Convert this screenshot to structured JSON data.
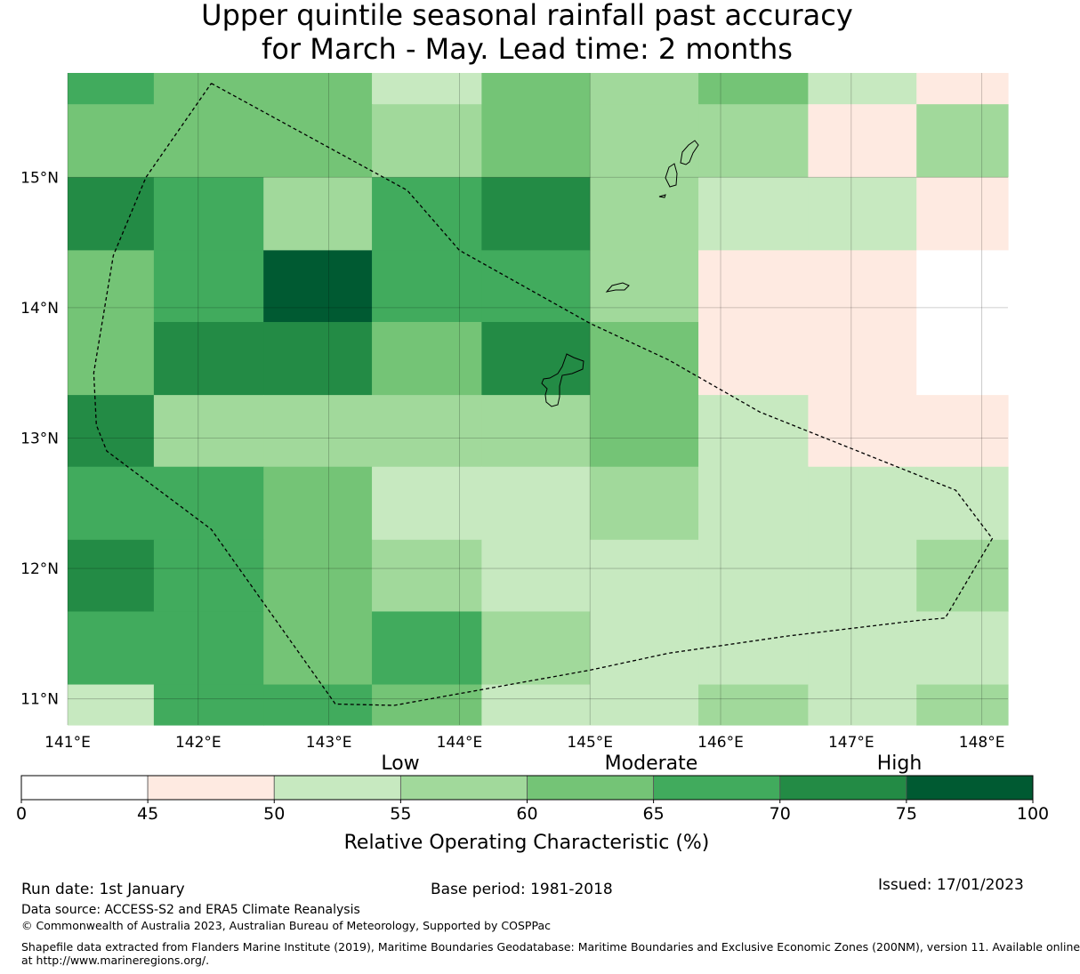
{
  "title_line1": "Upper quintile seasonal rainfall past accuracy",
  "title_line2": "for March - May. Lead time: 2 months",
  "map": {
    "lon_range": [
      141,
      148.2
    ],
    "lat_range": [
      10.8,
      15.8
    ],
    "x_ticks": [
      "141°E",
      "142°E",
      "143°E",
      "144°E",
      "145°E",
      "146°E",
      "147°E",
      "148°E"
    ],
    "y_ticks": [
      "11°N",
      "12°N",
      "13°N",
      "14°N",
      "15°N"
    ],
    "grid_cells_lon_edges": [
      141,
      141.66,
      142.5,
      143.33,
      144.17,
      145.0,
      145.83,
      146.67,
      147.5,
      148.2
    ],
    "grid_cells_lat_edges": [
      15.8,
      15.56,
      15.0,
      14.44,
      13.89,
      13.33,
      12.78,
      12.22,
      11.67,
      11.11,
      10.8
    ],
    "cell_values": [
      [
        67,
        62,
        62,
        52,
        62,
        57,
        62,
        52,
        47
      ],
      [
        62,
        62,
        62,
        57,
        62,
        57,
        57,
        47,
        57
      ],
      [
        72,
        67,
        57,
        67,
        72,
        57,
        52,
        52,
        47
      ],
      [
        62,
        67,
        77,
        67,
        67,
        57,
        47,
        47,
        0
      ],
      [
        62,
        72,
        72,
        62,
        72,
        62,
        47,
        47,
        0
      ],
      [
        72,
        57,
        57,
        57,
        57,
        62,
        52,
        47,
        47
      ],
      [
        67,
        67,
        62,
        52,
        52,
        57,
        52,
        52,
        52
      ],
      [
        72,
        67,
        62,
        57,
        52,
        52,
        52,
        52,
        57
      ],
      [
        67,
        67,
        62,
        67,
        57,
        52,
        52,
        52,
        52
      ],
      [
        52,
        67,
        67,
        62,
        52,
        52,
        57,
        52,
        57
      ]
    ],
    "eez_boundary": [
      [
        142.1,
        15.72
      ],
      [
        143.6,
        14.9
      ],
      [
        144.0,
        14.44
      ],
      [
        145.0,
        13.88
      ],
      [
        145.6,
        13.6
      ],
      [
        146.3,
        13.2
      ],
      [
        147.8,
        12.6
      ],
      [
        148.08,
        12.23
      ],
      [
        147.72,
        11.62
      ],
      [
        147.5,
        11.6
      ],
      [
        146.5,
        11.48
      ],
      [
        145.6,
        11.35
      ],
      [
        145.0,
        11.22
      ],
      [
        143.5,
        10.95
      ],
      [
        143.05,
        10.96
      ],
      [
        142.1,
        12.3
      ],
      [
        141.3,
        12.9
      ],
      [
        141.22,
        13.1
      ],
      [
        141.2,
        13.5
      ],
      [
        141.35,
        14.4
      ],
      [
        141.6,
        15.0
      ],
      [
        142.1,
        15.72
      ]
    ]
  },
  "legend": {
    "category_low": "Low",
    "category_moderate": "Moderate",
    "category_high": "High",
    "bins": [
      {
        "from": 0,
        "to": 45,
        "color": "#ffffff"
      },
      {
        "from": 45,
        "to": 50,
        "color": "#feeae1"
      },
      {
        "from": 50,
        "to": 55,
        "color": "#c7e9c0"
      },
      {
        "from": 55,
        "to": 60,
        "color": "#a1d99b"
      },
      {
        "from": 60,
        "to": 65,
        "color": "#74c476"
      },
      {
        "from": 65,
        "to": 70,
        "color": "#41ab5d"
      },
      {
        "from": 70,
        "to": 75,
        "color": "#238b45"
      },
      {
        "from": 75,
        "to": 100,
        "color": "#005a32"
      }
    ],
    "tick_labels": [
      "0",
      "45",
      "50",
      "55",
      "60",
      "65",
      "70",
      "75",
      "100"
    ],
    "axis_label": "Relative Operating Characteristic (%)"
  },
  "footer": {
    "run_date": "Run date: 1st January",
    "base_period": "Base period: 1981-2018",
    "issued": "Issued: 17/01/2023",
    "data_source": "Data source: ACCESS-S2 and ERA5 Climate Reanalysis",
    "copyright": "© Commonwealth of Australia 2023, Australian Bureau of Meteorology, Supported by COSPPac",
    "shapefile_line1": "Shapefile data extracted from Flanders Marine Institute (2019), Maritime Boundaries Geodatabase: Maritime Boundaries and Exclusive Economic Zones (200NM), version 11. Available online",
    "shapefile_line2": "at http://www.marineregions.org/."
  }
}
